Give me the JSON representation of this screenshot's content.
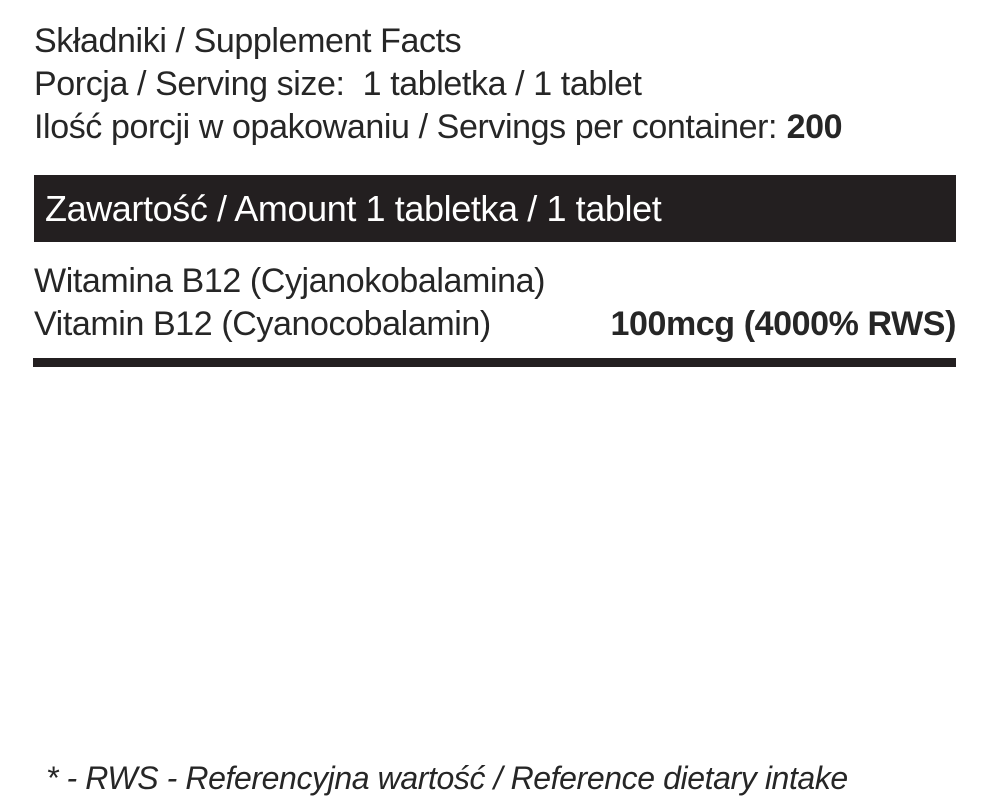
{
  "header": {
    "title": "Składniki / Supplement Facts",
    "serving_size": "Porcja / Serving size:  1 tabletka / 1 tablet",
    "servings_per_container_label": "Ilość porcji w opakowaniu / Servings per container:",
    "servings_per_container_value": "200"
  },
  "amount_header": {
    "text": "Zawartość / Amount 1 tabletka / 1 tablet"
  },
  "ingredients": [
    {
      "name_pl": "Witamina B12 (Cyjanokobalamina)",
      "name_en": "Vitamin B12 (Cyanocobalamin)",
      "amount": "100mcg (4000% RWS)"
    }
  ],
  "footnote": "* - RWS - Referencyjna wartość / Reference dietary intake",
  "colors": {
    "text": "#262626",
    "bar_background": "#231f20",
    "bar_text": "#ffffff",
    "page_background": "#ffffff"
  }
}
